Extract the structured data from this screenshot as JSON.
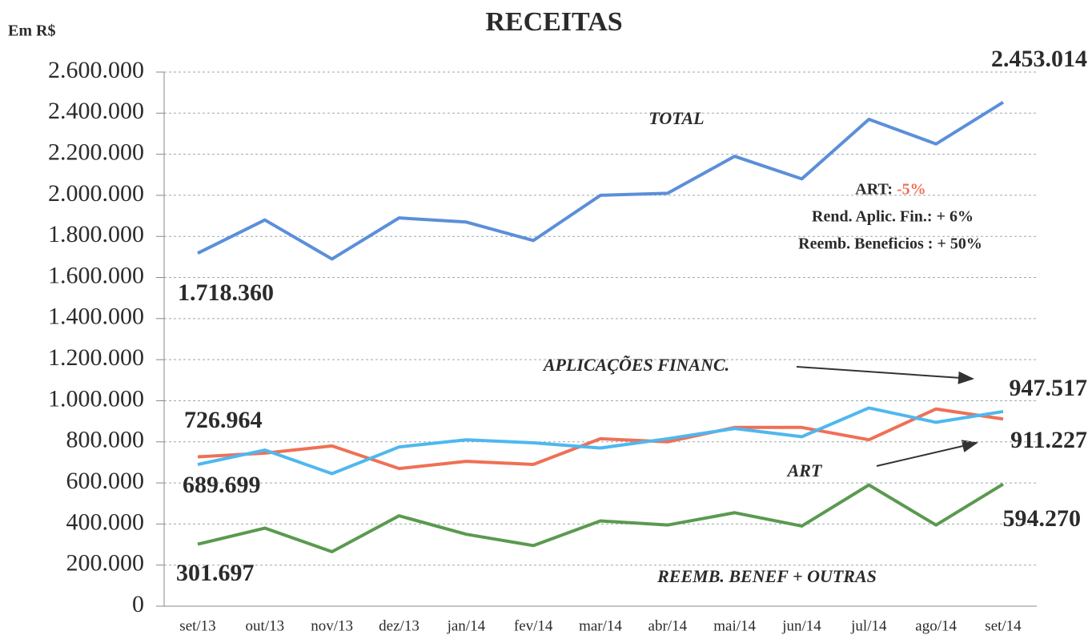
{
  "chart_data": {
    "type": "line",
    "title": "RECEITAS",
    "y_label": "Em R$",
    "categories": [
      "set/13",
      "out/13",
      "nov/13",
      "dez/13",
      "jan/14",
      "fev/14",
      "mar/14",
      "abr/14",
      "mai/14",
      "jun/14",
      "jul/14",
      "ago/14",
      "set/14"
    ],
    "series": [
      {
        "name": "TOTAL",
        "color": "#5b8fd9",
        "values": [
          1718360,
          1880000,
          1690000,
          1890000,
          1870000,
          1780000,
          2000000,
          2010000,
          2190000,
          2080000,
          2370000,
          2250000,
          2453014
        ],
        "value_labels": [
          "1.718.360",
          null,
          null,
          null,
          null,
          null,
          null,
          null,
          null,
          null,
          null,
          null,
          "2.453.014"
        ]
      },
      {
        "name": "ART",
        "color": "#ef7055",
        "values": [
          726964,
          745000,
          780000,
          670000,
          705000,
          690000,
          815000,
          800000,
          870000,
          870000,
          810000,
          960000,
          911227
        ],
        "value_labels": [
          "726.964",
          null,
          null,
          null,
          null,
          null,
          null,
          null,
          null,
          null,
          null,
          null,
          "911.227"
        ]
      },
      {
        "name": "APLICAÇÕES FINANC.",
        "color": "#4fb7ef",
        "values": [
          689699,
          760000,
          645000,
          775000,
          810000,
          795000,
          770000,
          815000,
          865000,
          825000,
          965000,
          895000,
          947517
        ],
        "value_labels": [
          "689.699",
          null,
          null,
          null,
          null,
          null,
          null,
          null,
          null,
          null,
          null,
          null,
          "947.517"
        ]
      },
      {
        "name": "REEMB. BENEF + OUTRAS",
        "color": "#5a9a4f",
        "values": [
          301697,
          380000,
          265000,
          440000,
          350000,
          295000,
          415000,
          395000,
          455000,
          390000,
          590000,
          395000,
          594270
        ],
        "value_labels": [
          "301.697",
          null,
          null,
          null,
          null,
          null,
          null,
          null,
          null,
          null,
          null,
          null,
          "594.270"
        ]
      }
    ],
    "annotations": [
      "ART:",
      "-5%",
      "Rend. Aplic. Fin.:  + 6%",
      "Reemb. Beneficios : + 50%"
    ],
    "ylim": [
      0,
      2600000
    ],
    "yticks": [
      0,
      {
        "value": 200000,
        "label": "200.000"
      },
      {
        "value": 400000,
        "label": "400.000"
      },
      {
        "value": 600000,
        "label": "600.000"
      },
      {
        "value": 800000,
        "label": "800.000"
      },
      {
        "value": 1000000,
        "label": "1.000.000"
      },
      {
        "value": 1200000,
        "label": "1.200.000"
      },
      {
        "value": 1400000,
        "label": "1.400.000"
      },
      {
        "value": 1600000,
        "label": "1.600.000"
      },
      {
        "value": 1800000,
        "label": "1.800.000"
      },
      {
        "value": 2000000,
        "label": "2.000.000"
      },
      {
        "value": 2200000,
        "label": "2.200.000"
      },
      {
        "value": 2400000,
        "label": "2.400.000"
      },
      {
        "value": 2600000,
        "label": "2.600.000"
      }
    ],
    "grid": true
  }
}
